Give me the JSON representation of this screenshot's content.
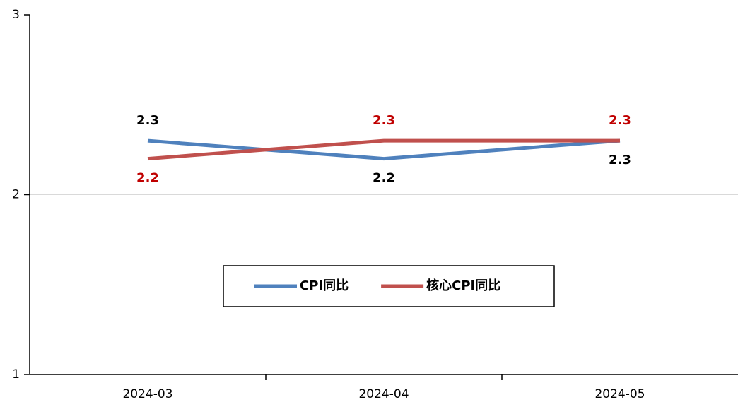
{
  "chart_data": {
    "type": "line",
    "categories": [
      "2024-03",
      "2024-04",
      "2024-05"
    ],
    "series": [
      {
        "name": "CPI同比",
        "color": "#4f81bd",
        "label_color": "#000000",
        "values": [
          2.3,
          2.2,
          2.3
        ]
      },
      {
        "name": "核心CPI同比",
        "color": "#c0504d",
        "label_color": "#c00000",
        "values": [
          2.2,
          2.3,
          2.3
        ]
      }
    ],
    "ylim": [
      1,
      3
    ],
    "yticks": [
      1,
      2,
      3
    ],
    "grid": true,
    "legend": "center"
  }
}
